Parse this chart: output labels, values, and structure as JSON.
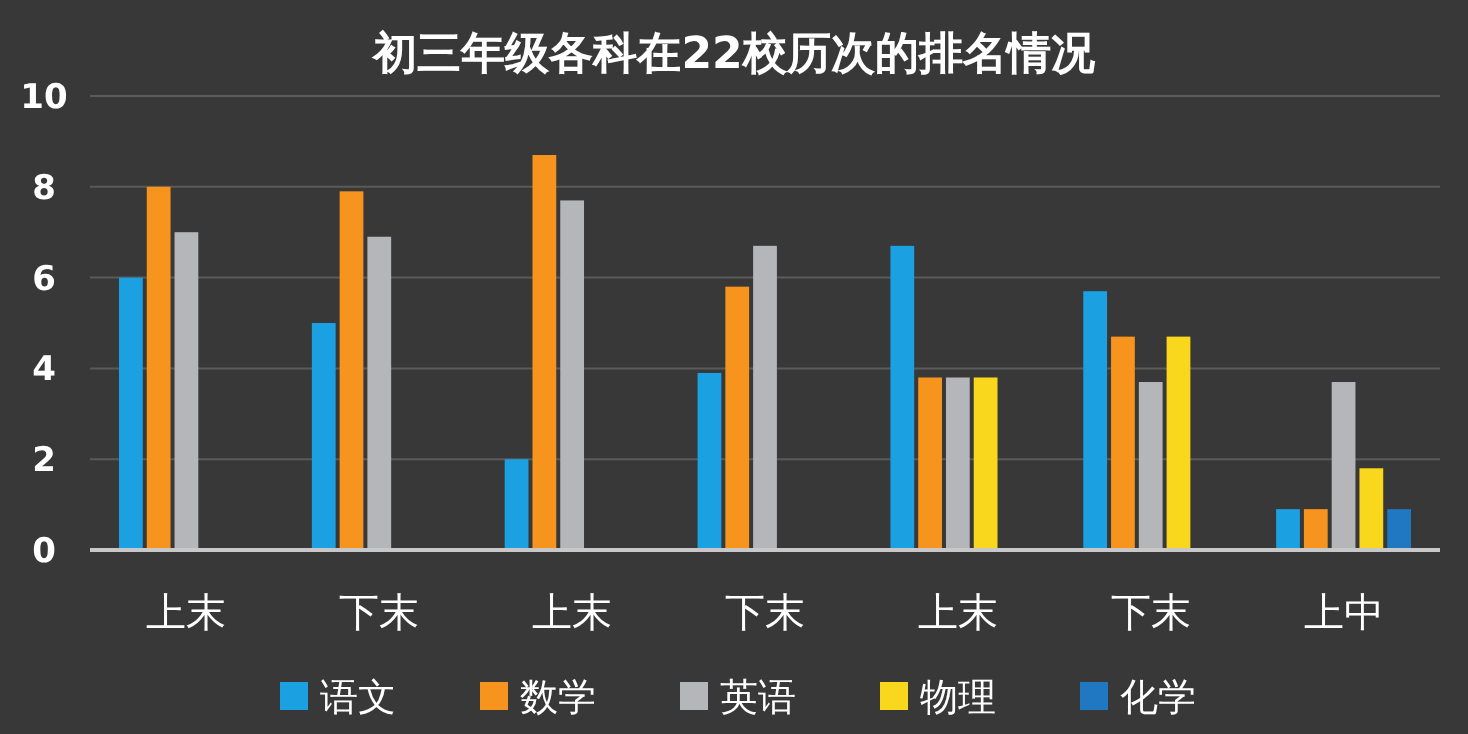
{
  "chart_data": {
    "type": "bar",
    "title": "初三年级各科在22校历次的排名情况",
    "categories": [
      "上末",
      "下末",
      "上末",
      "下末",
      "上末",
      "下末",
      "上中"
    ],
    "series": [
      {
        "name": "语文",
        "color": "#1ba1e2",
        "values": [
          6,
          5,
          2,
          3.9,
          6.7,
          5.7,
          0.9
        ]
      },
      {
        "name": "数学",
        "color": "#f7941d",
        "values": [
          8,
          7.9,
          8.7,
          5.8,
          3.8,
          4.7,
          0.9
        ]
      },
      {
        "name": "英语",
        "color": "#b4b6ba",
        "values": [
          7,
          6.9,
          7.7,
          6.7,
          3.8,
          3.7,
          3.7
        ]
      },
      {
        "name": "物理",
        "color": "#f9d71c",
        "values": [
          null,
          null,
          null,
          null,
          3.8,
          4.7,
          1.8
        ]
      },
      {
        "name": "化学",
        "color": "#1f78c1",
        "values": [
          null,
          null,
          null,
          null,
          null,
          null,
          0.9
        ]
      }
    ],
    "ylim": [
      0,
      10
    ],
    "yticks": [
      0,
      2,
      4,
      6,
      8,
      10
    ],
    "grid": "y",
    "legend": "bottom"
  }
}
